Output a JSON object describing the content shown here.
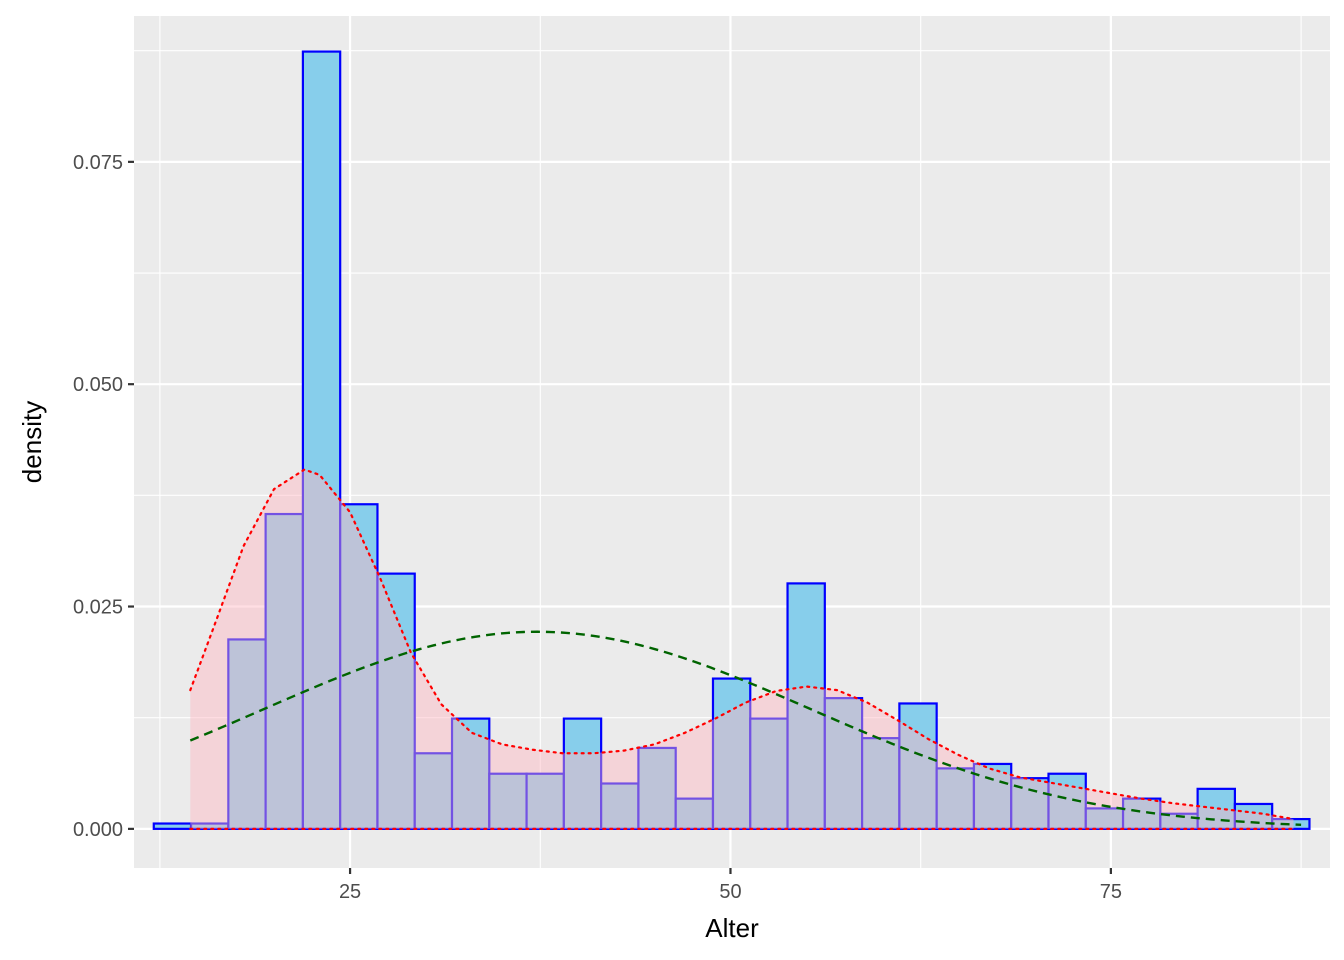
{
  "chart_data": {
    "type": "histogram",
    "xlabel": "Alter",
    "ylabel": "density",
    "xlim": [
      10.8,
      89.4
    ],
    "ylim": [
      -0.0044,
      0.0914
    ],
    "x_ticks": [
      25,
      50,
      75
    ],
    "y_ticks": [
      0.0,
      0.025,
      0.05,
      0.075
    ],
    "x_tick_labels": [
      "25",
      "50",
      "75"
    ],
    "y_tick_labels": [
      "0.000",
      "0.025",
      "0.050",
      "0.075"
    ],
    "grid": true,
    "background": "#ebebeb",
    "histogram": {
      "bin_edges": [
        12.1,
        14.55,
        17.0,
        19.45,
        21.9,
        24.35,
        26.8,
        29.25,
        31.7,
        34.15,
        36.6,
        39.05,
        41.5,
        43.95,
        46.4,
        48.85,
        51.3,
        53.75,
        56.2,
        58.65,
        61.1,
        63.55,
        66.0,
        68.45,
        70.9,
        73.35,
        75.8,
        78.25,
        80.7,
        83.15,
        85.6,
        88.05
      ],
      "densities": [
        0.0006,
        0.0006,
        0.0213,
        0.0354,
        0.0874,
        0.0365,
        0.0287,
        0.0085,
        0.0124,
        0.0062,
        0.0062,
        0.0124,
        0.0051,
        0.0091,
        0.0034,
        0.0169,
        0.0124,
        0.0276,
        0.0147,
        0.0102,
        0.0141,
        0.0068,
        0.0073,
        0.0057,
        0.0062,
        0.0023,
        0.0034,
        0.0017,
        0.0045,
        0.0028,
        0.0011
      ],
      "fill": "#87ceeb",
      "stroke": "#0000ff"
    },
    "kernel_density": {
      "x": [
        14.5,
        16,
        18,
        20,
        22,
        23,
        25,
        27,
        29,
        31,
        33,
        35,
        37,
        39,
        41,
        43,
        45,
        47,
        49,
        51,
        53,
        55,
        57,
        59,
        61,
        63,
        65,
        67,
        69,
        71,
        73,
        75,
        77,
        79,
        81,
        83,
        85,
        87
      ],
      "y": [
        0.0156,
        0.0225,
        0.0318,
        0.0382,
        0.0404,
        0.0398,
        0.0356,
        0.0281,
        0.0198,
        0.014,
        0.0108,
        0.0095,
        0.0089,
        0.0085,
        0.0085,
        0.0088,
        0.0095,
        0.0108,
        0.0124,
        0.0142,
        0.0155,
        0.016,
        0.0156,
        0.0142,
        0.0122,
        0.0101,
        0.0083,
        0.0068,
        0.0058,
        0.0052,
        0.0046,
        0.004,
        0.0034,
        0.0029,
        0.0025,
        0.0021,
        0.0017,
        0.0011
      ],
      "fill": "#ffb6c1",
      "fill_opacity": 0.45,
      "stroke": "#ff0000",
      "line_style": "dotted"
    },
    "normal_curve": {
      "mean": 37.3,
      "sd": 18.0,
      "x_range": [
        14.5,
        87.5
      ],
      "stroke": "#006400",
      "line_style": "dashed"
    }
  }
}
